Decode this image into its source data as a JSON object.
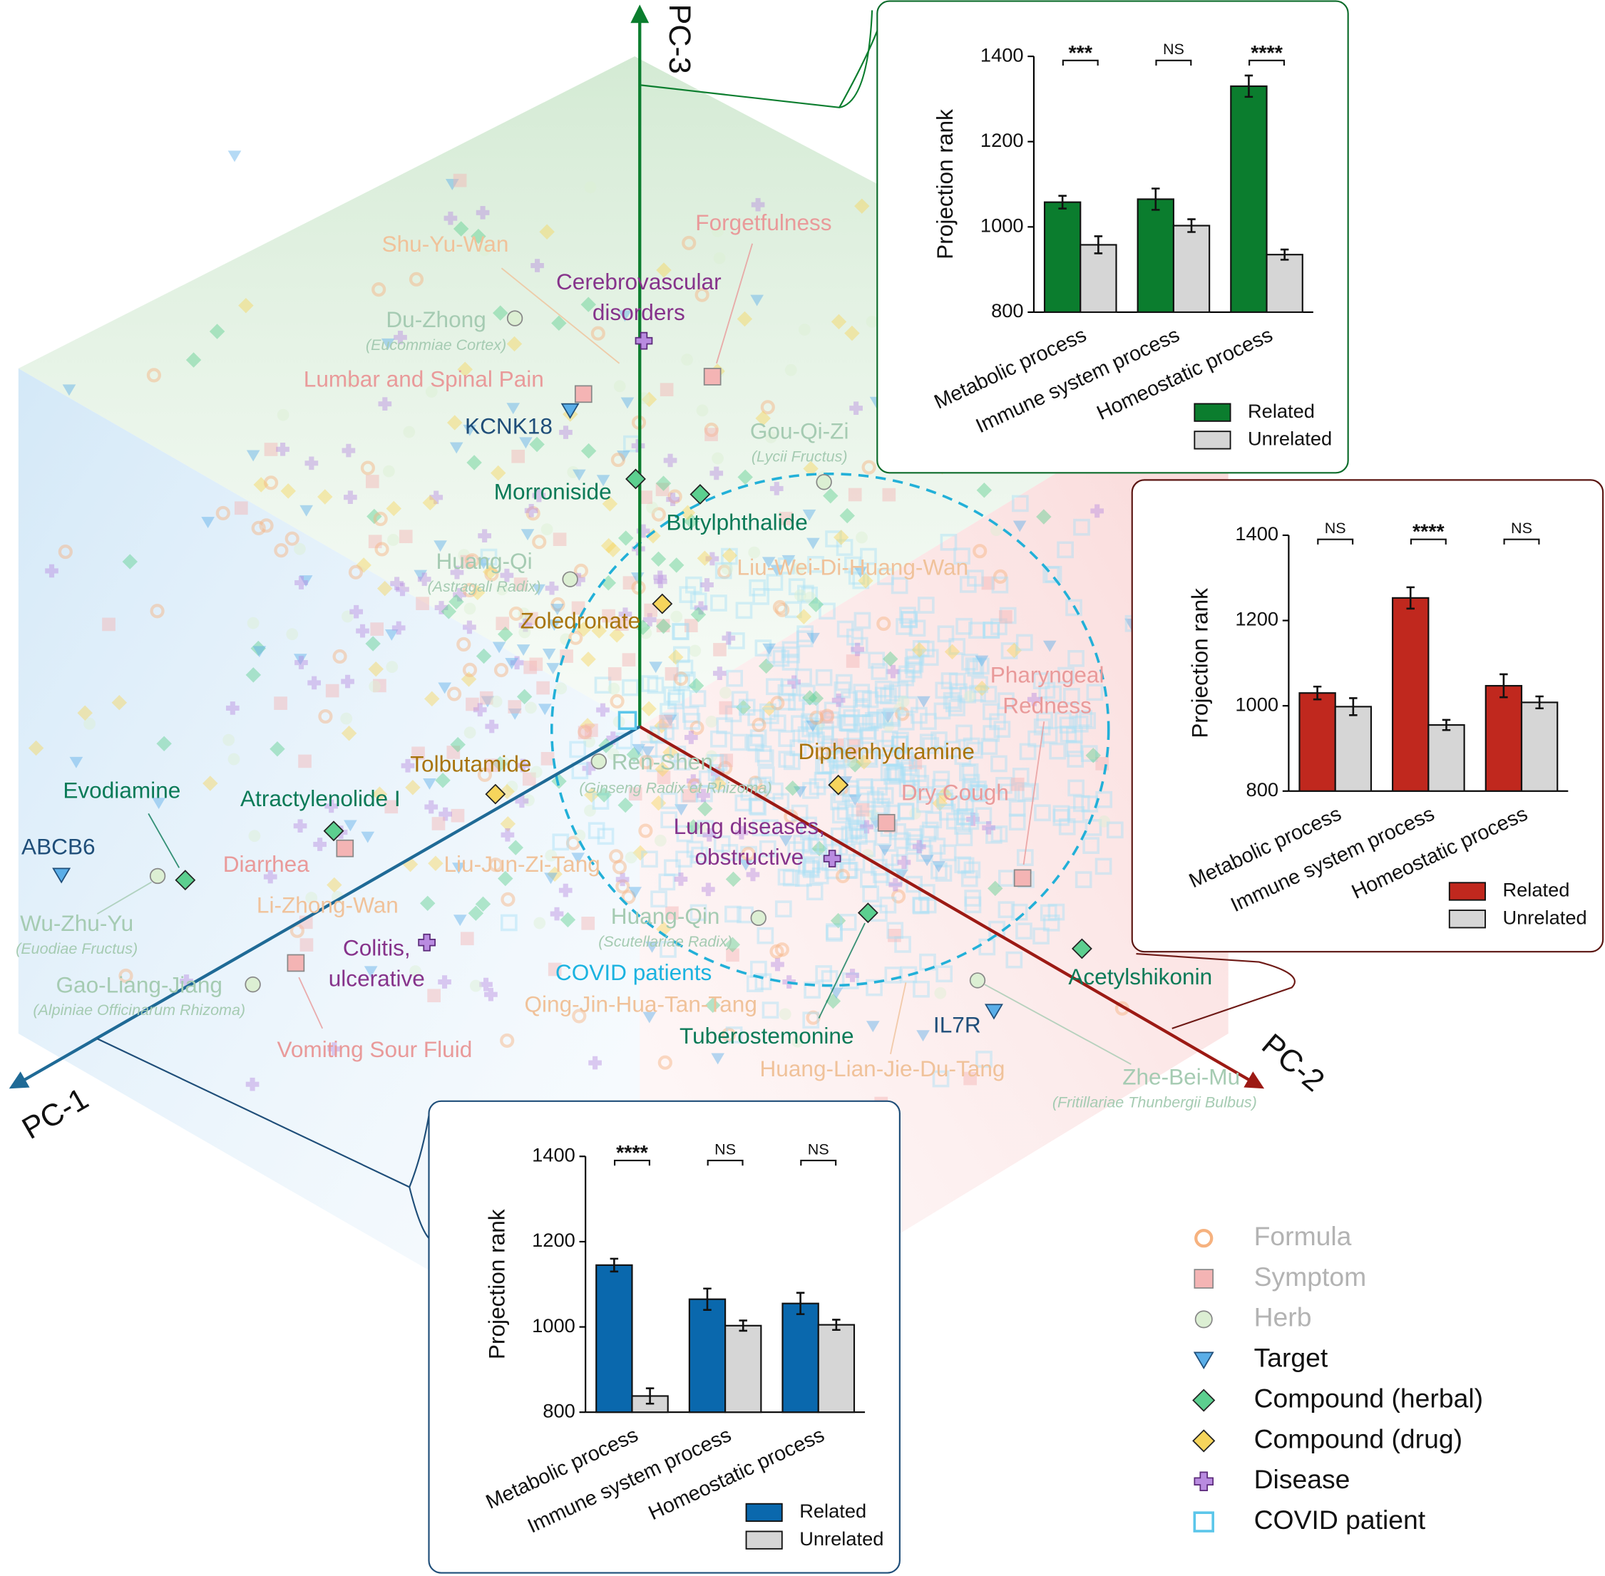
{
  "projection": {
    "axes": [
      "PC-1",
      "PC-2",
      "PC-3"
    ],
    "legend": [
      {
        "name": "Formula",
        "color": "#f6b27f"
      },
      {
        "name": "Symptom",
        "color": "#f4b4b4"
      },
      {
        "name": "Herb",
        "color": "#dcefd3"
      },
      {
        "name": "Target",
        "color": "#5aaee8"
      },
      {
        "name": "Compound (herbal)",
        "color": "#5ccf8f"
      },
      {
        "name": "Compound (drug)",
        "color": "#f6d55c"
      },
      {
        "name": "Disease",
        "color": "#b98be0"
      },
      {
        "name": "COVID patient",
        "color": "#a8e0f7"
      }
    ],
    "points": [
      {
        "label": [
          "Shu-Yu-Wan"
        ],
        "kind": "Formula"
      },
      {
        "label": [
          "Forgetfulness"
        ],
        "kind": "Symptom"
      },
      {
        "label": [
          "Cerebrovascular",
          "disorders"
        ],
        "kind": "Disease"
      },
      {
        "label": [
          "Du-Zhong"
        ],
        "sublabel": "(Eucommiae Cortex)",
        "kind": "Herb"
      },
      {
        "label": [
          "Lumbar and Spinal Pain"
        ],
        "kind": "Symptom"
      },
      {
        "label": [
          "KCNK18"
        ],
        "kind": "Target"
      },
      {
        "label": [
          "Gou-Qi-Zi"
        ],
        "sublabel": "(Lycii Fructus)",
        "kind": "Herb"
      },
      {
        "label": [
          "Morroniside"
        ],
        "kind": "Compound (herbal)"
      },
      {
        "label": [
          "Butylphthalide"
        ],
        "kind": "Compound (herbal)"
      },
      {
        "label": [
          "Huang-Qi"
        ],
        "sublabel": "(Astragali Radix)",
        "kind": "Herb"
      },
      {
        "label": [
          "Liu-Wei-Di-Huang-Wan"
        ],
        "kind": "Formula"
      },
      {
        "label": [
          "Zoledronate"
        ],
        "kind": "Compound (drug)"
      },
      {
        "label": [
          "Pharyngeal",
          "Redness"
        ],
        "kind": "Symptom"
      },
      {
        "label": [
          "Diphenhydramine"
        ],
        "kind": "Compound (drug)"
      },
      {
        "label": [
          "Tolbutamide"
        ],
        "kind": "Compound (drug)"
      },
      {
        "label": [
          "Ren-Shen"
        ],
        "sublabel": "(Ginseng Radix et Rhizoma)",
        "kind": "Herb"
      },
      {
        "label": [
          "Dry Cough"
        ],
        "kind": "Symptom"
      },
      {
        "label": [
          "Evodiamine"
        ],
        "kind": "Compound (herbal)"
      },
      {
        "label": [
          "Atractylenolide I"
        ],
        "kind": "Compound (herbal)"
      },
      {
        "label": [
          "ABCB6"
        ],
        "kind": "Target"
      },
      {
        "label": [
          "Lung diseases,",
          "obstructive"
        ],
        "kind": "Disease"
      },
      {
        "label": [
          "Diarrhea"
        ],
        "kind": "Symptom"
      },
      {
        "label": [
          "Liu-Jun-Zi-Tang"
        ],
        "kind": "Formula"
      },
      {
        "label": [
          "Wu-Zhu-Yu"
        ],
        "sublabel": "(Euodiae Fructus)",
        "kind": "Herb"
      },
      {
        "label": [
          "Li-Zhong-Wan"
        ],
        "kind": "Formula"
      },
      {
        "label": [
          "Huang-Qin"
        ],
        "sublabel": "(Scutellariae Radix)",
        "kind": "Herb"
      },
      {
        "label": [
          "Colitis,",
          "ulcerative"
        ],
        "kind": "Disease"
      },
      {
        "label": [
          "COVID patients"
        ],
        "kind": "COVID patient"
      },
      {
        "label": [
          "Acetylshikonin"
        ],
        "kind": "Compound (herbal)"
      },
      {
        "label": [
          "Gao-Liang-Jiang"
        ],
        "sublabel": "(Alpiniae Officinarum Rhizoma)",
        "kind": "Herb"
      },
      {
        "label": [
          "Qing-Jin-Hua-Tan-Tang"
        ],
        "kind": "Formula"
      },
      {
        "label": [
          "IL7R"
        ],
        "kind": "Target"
      },
      {
        "label": [
          "Tuberostemonine"
        ],
        "kind": "Compound (herbal)"
      },
      {
        "label": [
          "Vomiting Sour Fluid"
        ],
        "kind": "Symptom"
      },
      {
        "label": [
          "Huang-Lian-Jie-Du-Tang"
        ],
        "kind": "Formula"
      },
      {
        "label": [
          "Zhe-Bei-Mu"
        ],
        "sublabel": "(Fritillariae Thunbergii Bulbus)",
        "kind": "Herb"
      }
    ]
  },
  "chart_data": [
    {
      "type": "bar",
      "ylabel": "Projection rank",
      "categories": [
        "Metabolic process",
        "Immune system process",
        "Homeostatic process"
      ],
      "significance": [
        "***",
        "NS",
        "****"
      ],
      "series": [
        {
          "name": "Related",
          "color": "#0b7d2e",
          "values": [
            1058,
            1065,
            1330
          ],
          "errors": [
            15,
            25,
            25
          ]
        },
        {
          "name": "Unrelated",
          "color": "#d6d6d6",
          "values": [
            958,
            1003,
            935
          ],
          "errors": [
            20,
            15,
            12
          ]
        }
      ],
      "ylim": [
        800,
        1400
      ],
      "yticks": [
        800,
        1000,
        1200,
        1400
      ]
    },
    {
      "type": "bar",
      "ylabel": "Projection rank",
      "categories": [
        "Metabolic process",
        "Immune system process",
        "Homeostatic process"
      ],
      "significance": [
        "NS",
        "****",
        "NS"
      ],
      "series": [
        {
          "name": "Related",
          "color": "#c0281e",
          "values": [
            1030,
            1253,
            1047
          ],
          "errors": [
            15,
            25,
            27
          ]
        },
        {
          "name": "Unrelated",
          "color": "#d6d6d6",
          "values": [
            998,
            955,
            1008
          ],
          "errors": [
            20,
            12,
            14
          ]
        }
      ],
      "ylim": [
        800,
        1400
      ],
      "yticks": [
        800,
        1000,
        1200,
        1400
      ]
    },
    {
      "type": "bar",
      "ylabel": "Projection rank",
      "categories": [
        "Metabolic process",
        "Immune system process",
        "Homeostatic process"
      ],
      "significance": [
        "****",
        "NS",
        "NS"
      ],
      "series": [
        {
          "name": "Related",
          "color": "#0a68ad",
          "values": [
            1145,
            1065,
            1055
          ],
          "errors": [
            15,
            25,
            25
          ]
        },
        {
          "name": "Unrelated",
          "color": "#d6d6d6",
          "values": [
            838,
            1003,
            1005
          ],
          "errors": [
            18,
            12,
            12
          ]
        }
      ],
      "ylim": [
        800,
        1400
      ],
      "yticks": [
        800,
        1000,
        1200,
        1400
      ]
    }
  ]
}
